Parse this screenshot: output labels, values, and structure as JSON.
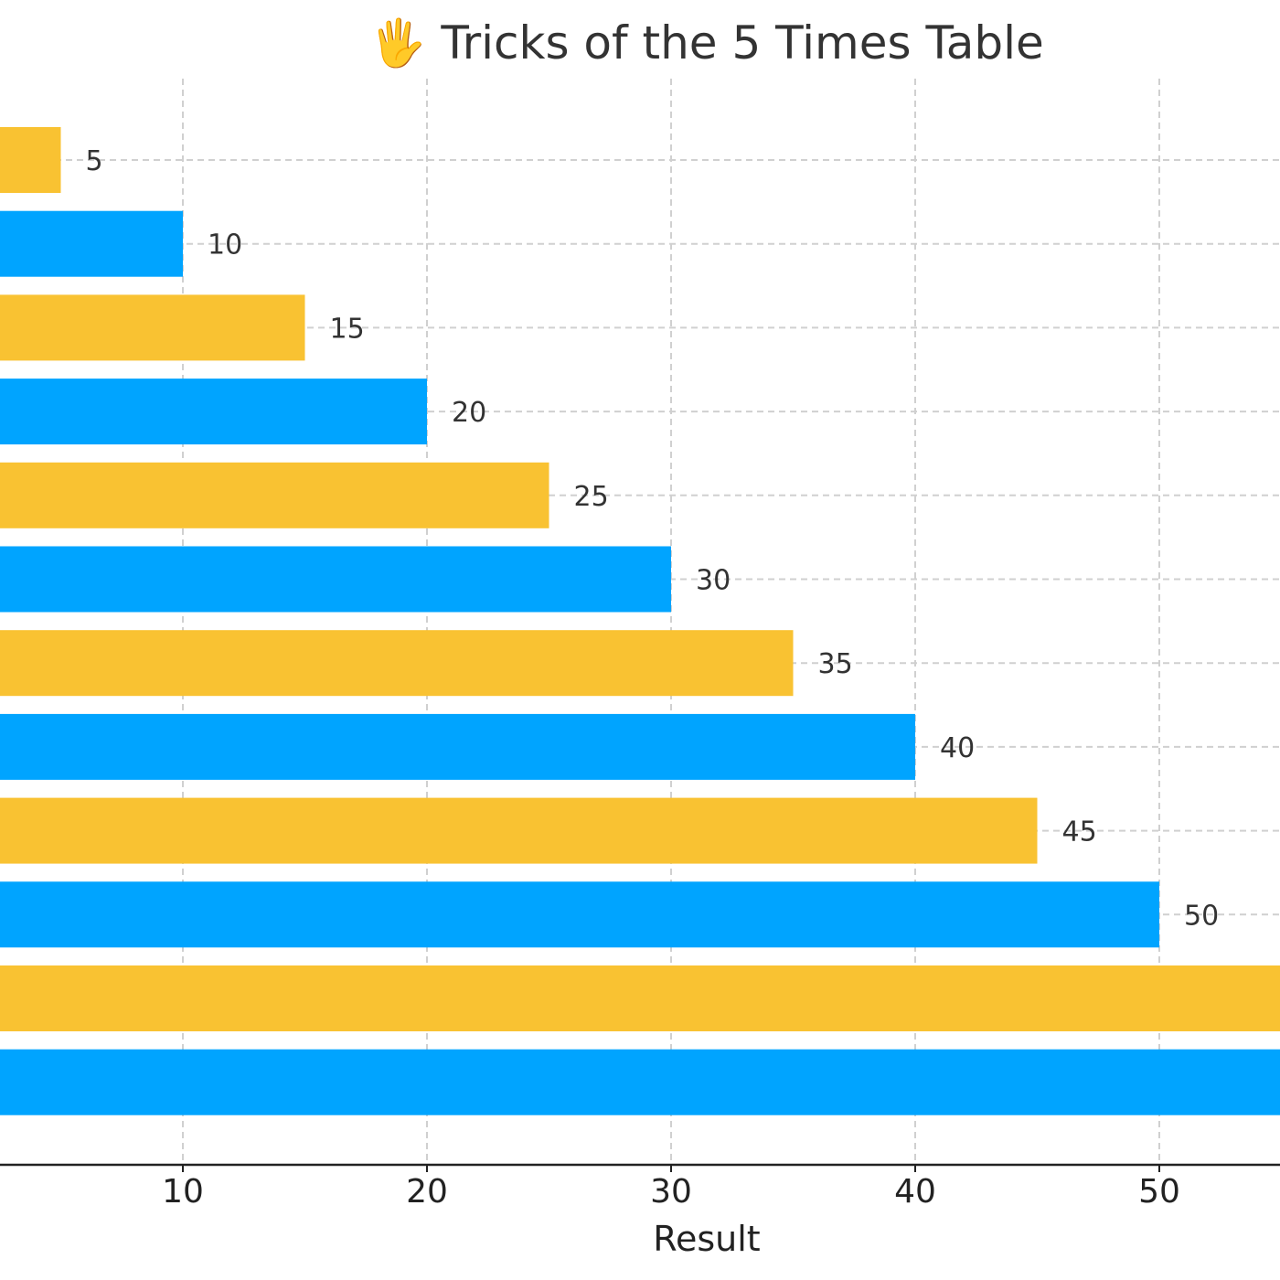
{
  "chart_data": {
    "type": "bar",
    "orientation": "horizontal",
    "title": "🖐 Tricks of the 5 Times Table",
    "xlabel": "Result",
    "ylabel": "",
    "values": [
      5,
      10,
      15,
      20,
      25,
      30,
      35,
      40,
      45,
      50,
      55,
      60
    ],
    "data_labels": [
      "5",
      "10",
      "15",
      "20",
      "25",
      "30",
      "35",
      "40",
      "45",
      "50",
      "",
      ""
    ],
    "x_ticks": [
      10,
      20,
      30,
      40,
      50
    ],
    "x_tick_labels": [
      "10",
      "20",
      "30",
      "40",
      "50"
    ],
    "grid": true,
    "colors": [
      "#F9C232",
      "#00A4FF"
    ],
    "bar_color_pattern": "alternating"
  }
}
